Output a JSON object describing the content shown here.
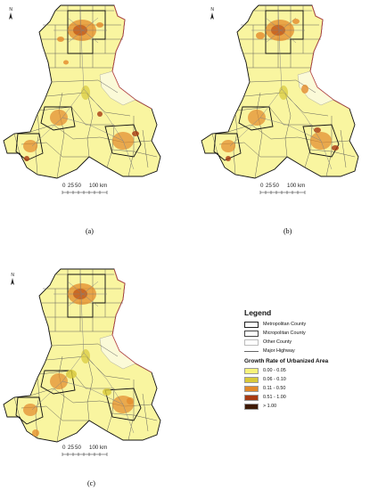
{
  "panels": [
    {
      "label": "(a)",
      "scale": {
        "ticks": [
          "0",
          "25",
          "50",
          "100 km"
        ]
      },
      "north": "N"
    },
    {
      "label": "(b)",
      "scale": {
        "ticks": [
          "0",
          "25",
          "50",
          "100 km"
        ]
      },
      "north": "N"
    },
    {
      "label": "(c)",
      "scale": {
        "ticks": [
          "0",
          "25",
          "50",
          "100 km"
        ]
      },
      "north": "N"
    }
  ],
  "legend": {
    "title": "Legend",
    "boundaries": [
      {
        "label": "Metropolitan County"
      },
      {
        "label": "Micropolitan County"
      },
      {
        "label": "Other County"
      },
      {
        "label": "Major Highway"
      }
    ],
    "growth_title": "Growth Rate of Urbanized Area",
    "classes": [
      {
        "label": "0.00 - 0.05",
        "color": "#f7f27a"
      },
      {
        "label": "0.06 - 0.10",
        "color": "#d9c93a"
      },
      {
        "label": "0.11 - 0.50",
        "color": "#e3892a"
      },
      {
        "label": "0.51 - 1.00",
        "color": "#a83a12"
      },
      {
        "label": "> 1.00",
        "color": "#3e1a05"
      }
    ]
  },
  "colors": {
    "base_fill": "#f9f5a0",
    "county_border": "#555555",
    "metro_border": "#111111",
    "state_line": "#d04a4a",
    "highway": "#808080"
  }
}
